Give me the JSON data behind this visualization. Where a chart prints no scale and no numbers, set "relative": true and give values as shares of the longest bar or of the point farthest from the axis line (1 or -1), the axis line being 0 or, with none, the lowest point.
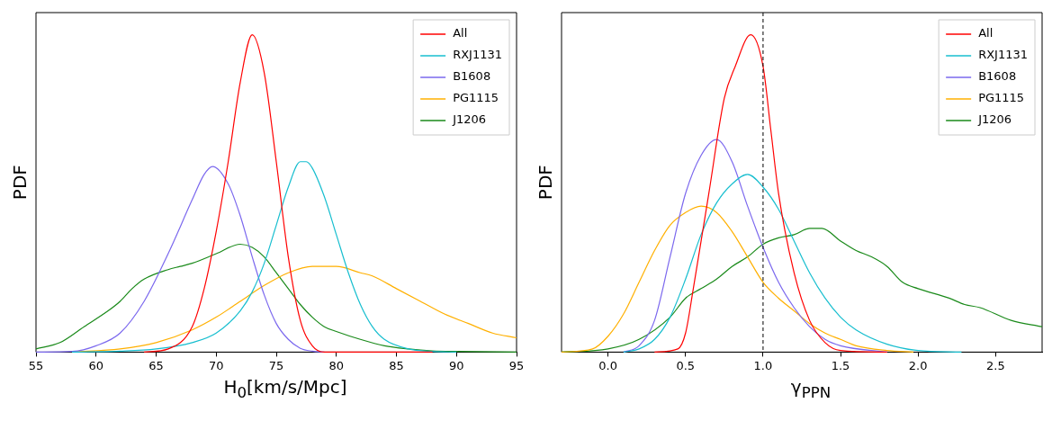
{
  "chart_data": [
    {
      "type": "line",
      "relative": true,
      "xlabel": "H$_{0}$[km/s/Mpc]",
      "ylabel": "PDF",
      "xlim": [
        55,
        95
      ],
      "xticks": [
        55,
        60,
        65,
        70,
        75,
        80,
        85,
        90,
        95
      ],
      "grid": false,
      "legend": "top right",
      "marker": "none",
      "line_style": "solid",
      "tick_labels": "x",
      "series": [
        {
          "name": "All",
          "color": "#ff0000",
          "x": [
            64,
            66,
            68,
            69,
            70,
            71,
            72,
            73,
            74,
            75,
            76,
            77,
            78,
            79,
            88
          ],
          "values": [
            0,
            0.01,
            0.08,
            0.2,
            0.38,
            0.6,
            0.85,
            1.0,
            0.88,
            0.6,
            0.3,
            0.1,
            0.02,
            0,
            0
          ]
        },
        {
          "name": "RXJ1131",
          "color": "#17becf",
          "x": [
            58,
            62,
            65,
            68,
            70,
            72,
            73,
            74,
            75,
            76,
            77,
            77.5,
            78,
            79,
            80,
            81,
            82,
            83,
            84,
            86,
            88,
            90
          ],
          "values": [
            0,
            0.003,
            0.01,
            0.03,
            0.06,
            0.13,
            0.19,
            0.28,
            0.4,
            0.52,
            0.6,
            0.6,
            0.58,
            0.49,
            0.37,
            0.25,
            0.15,
            0.08,
            0.04,
            0.01,
            0.002,
            0
          ]
        },
        {
          "name": "B1608",
          "color": "#7b68ee",
          "x": [
            55,
            58,
            60,
            62,
            64,
            66,
            68,
            69,
            69.7,
            71,
            72,
            73,
            74,
            75,
            76,
            77,
            78,
            79
          ],
          "values": [
            0,
            0.002,
            0.02,
            0.06,
            0.16,
            0.31,
            0.48,
            0.56,
            0.585,
            0.53,
            0.43,
            0.3,
            0.18,
            0.09,
            0.04,
            0.012,
            0.003,
            0
          ]
        },
        {
          "name": "PG1115",
          "color": "#ffb000",
          "x": [
            58,
            62,
            65,
            68,
            70,
            72,
            74,
            76,
            78,
            80,
            82,
            83,
            85,
            87,
            89,
            91,
            93,
            95
          ],
          "values": [
            0,
            0.01,
            0.03,
            0.07,
            0.11,
            0.16,
            0.21,
            0.25,
            0.27,
            0.27,
            0.25,
            0.24,
            0.2,
            0.16,
            0.12,
            0.09,
            0.06,
            0.045
          ]
        },
        {
          "name": "J1206",
          "color": "#1a8a1a",
          "x": [
            55,
            57,
            59,
            61,
            62,
            63,
            64,
            66,
            67,
            68,
            70,
            72,
            73,
            74,
            75,
            76,
            77,
            78,
            79,
            80,
            82,
            84,
            86,
            88,
            90,
            95
          ],
          "values": [
            0.01,
            0.03,
            0.08,
            0.13,
            0.16,
            0.2,
            0.23,
            0.26,
            0.27,
            0.28,
            0.31,
            0.34,
            0.33,
            0.3,
            0.25,
            0.2,
            0.15,
            0.11,
            0.08,
            0.065,
            0.04,
            0.02,
            0.01,
            0.004,
            0.002,
            0
          ]
        }
      ]
    },
    {
      "type": "line",
      "relative": true,
      "xlabel": "γ$_{PPN}$",
      "ylabel": "PDF",
      "xlim": [
        -0.3,
        2.8
      ],
      "xticks": [
        {
          "value": 0,
          "label": "0.0"
        },
        {
          "value": 0.5,
          "label": "0.5"
        },
        {
          "value": 1,
          "label": "1.0"
        },
        {
          "value": 1.5,
          "label": "1.5"
        },
        {
          "value": 2,
          "label": "2.0"
        },
        {
          "value": 2.5,
          "label": "2.5"
        }
      ],
      "grid": false,
      "legend": "top right",
      "marker": "none",
      "line_style": "solid",
      "tick_labels": "x",
      "ref_lines": [
        {
          "axis": "x",
          "value": 1,
          "color": "#000000",
          "line_style": "dashed"
        }
      ],
      "series": [
        {
          "name": "All",
          "color": "#ff0000",
          "x": [
            0.3,
            0.45,
            0.5,
            0.55,
            0.65,
            0.75,
            0.82,
            0.92,
            1.0,
            1.05,
            1.1,
            1.2,
            1.3,
            1.4,
            1.5,
            1.8
          ],
          "values": [
            0,
            0.01,
            0.06,
            0.2,
            0.5,
            0.8,
            0.9,
            1.0,
            0.9,
            0.7,
            0.5,
            0.25,
            0.1,
            0.03,
            0.005,
            0
          ]
        },
        {
          "name": "RXJ1131",
          "color": "#17becf",
          "x": [
            0.1,
            0.2,
            0.3,
            0.4,
            0.5,
            0.6,
            0.7,
            0.8,
            0.9,
            1.0,
            1.1,
            1.2,
            1.3,
            1.4,
            1.5,
            1.6,
            1.8,
            2.0,
            2.28
          ],
          "values": [
            0,
            0.01,
            0.04,
            0.11,
            0.23,
            0.37,
            0.47,
            0.53,
            0.56,
            0.52,
            0.45,
            0.35,
            0.25,
            0.17,
            0.11,
            0.07,
            0.025,
            0.005,
            0
          ]
        },
        {
          "name": "B1608",
          "color": "#7b68ee",
          "x": [
            0.1,
            0.2,
            0.3,
            0.4,
            0.5,
            0.6,
            0.7,
            0.8,
            0.9,
            1.0,
            1.1,
            1.2,
            1.3,
            1.4,
            1.5,
            1.8
          ],
          "values": [
            0,
            0.02,
            0.1,
            0.3,
            0.5,
            0.62,
            0.67,
            0.6,
            0.46,
            0.33,
            0.22,
            0.14,
            0.08,
            0.04,
            0.02,
            0
          ]
        },
        {
          "name": "PG1115",
          "color": "#ffb000",
          "x": [
            -0.3,
            -0.1,
            0.0,
            0.1,
            0.2,
            0.3,
            0.4,
            0.5,
            0.6,
            0.7,
            0.8,
            0.9,
            1.0,
            1.1,
            1.2,
            1.3,
            1.4,
            1.5,
            1.6,
            1.8,
            1.97
          ],
          "values": [
            0,
            0.01,
            0.05,
            0.12,
            0.22,
            0.32,
            0.4,
            0.44,
            0.46,
            0.44,
            0.38,
            0.3,
            0.22,
            0.17,
            0.13,
            0.09,
            0.06,
            0.04,
            0.02,
            0.005,
            0
          ]
        },
        {
          "name": "J1206",
          "color": "#1a8a1a",
          "x": [
            -0.3,
            0.0,
            0.2,
            0.4,
            0.5,
            0.6,
            0.7,
            0.8,
            0.9,
            1.0,
            1.1,
            1.2,
            1.3,
            1.38,
            1.5,
            1.6,
            1.7,
            1.8,
            1.9,
            2.0,
            2.2,
            2.3,
            2.4,
            2.6,
            2.8
          ],
          "values": [
            0,
            0.01,
            0.04,
            0.11,
            0.17,
            0.2,
            0.23,
            0.27,
            0.3,
            0.34,
            0.36,
            0.37,
            0.39,
            0.39,
            0.35,
            0.32,
            0.3,
            0.27,
            0.22,
            0.2,
            0.17,
            0.15,
            0.14,
            0.1,
            0.08
          ]
        }
      ]
    }
  ]
}
